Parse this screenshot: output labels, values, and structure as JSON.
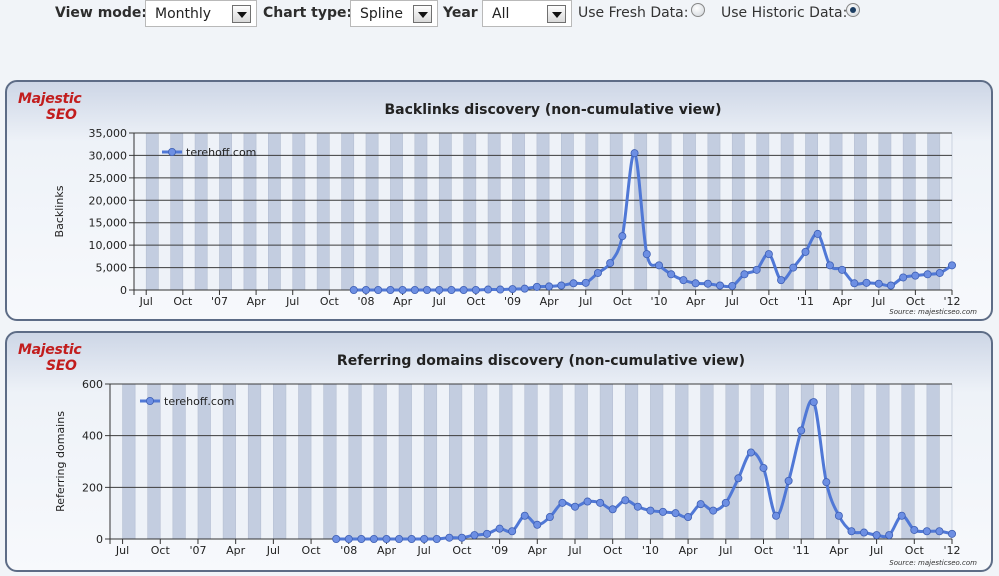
{
  "toolbar": {
    "view_mode_label": "View mode:",
    "view_mode_value": "Monthly",
    "chart_type_label": "Chart type:",
    "chart_type_value": "Spline",
    "year_label": "Year",
    "year_value": "All",
    "fresh_label": "Use Fresh Data:",
    "historic_label": "Use Historic Data:",
    "fresh_selected": false,
    "historic_selected": true
  },
  "logo": {
    "text": "Majestic SEO"
  },
  "source_text": "Source: majesticseo.com",
  "colors": {
    "series": "#5078d6",
    "marker": "#6d8fe3",
    "grid": "#3c3c3c",
    "band_dark": "#c3cde0",
    "band_light": "#eef2f8"
  },
  "x_tick_labels": [
    "Jul",
    "Oct",
    "'07",
    "Apr",
    "Jul",
    "Oct",
    "'08",
    "Apr",
    "Jul",
    "Oct",
    "'09",
    "Apr",
    "Jul",
    "Oct",
    "'10",
    "Apr",
    "Jul",
    "Oct",
    "'11",
    "Apr",
    "Jul",
    "Oct",
    "'12"
  ],
  "chart_data": [
    {
      "type": "line",
      "title": "Backlinks discovery (non-cumulative view)",
      "ylabel": "Backlinks",
      "ylim": [
        0,
        35000
      ],
      "y_ticks": [
        "0",
        "5,000",
        "10,000",
        "15,000",
        "20,000",
        "25,000",
        "30,000",
        "35,000"
      ],
      "y_tick_values": [
        0,
        5000,
        10000,
        15000,
        20000,
        25000,
        30000,
        35000
      ],
      "x_range": [
        "2006-06",
        "2012-01"
      ],
      "legend": "top-left",
      "series": [
        {
          "name": "terehoff.com",
          "x": [
            "2007-12",
            "2008-01",
            "2008-02",
            "2008-03",
            "2008-04",
            "2008-05",
            "2008-06",
            "2008-07",
            "2008-08",
            "2008-09",
            "2008-10",
            "2008-11",
            "2008-12",
            "2009-01",
            "2009-02",
            "2009-03",
            "2009-04",
            "2009-05",
            "2009-06",
            "2009-07",
            "2009-08",
            "2009-09",
            "2009-10",
            "2009-11",
            "2009-12",
            "2010-01",
            "2010-02",
            "2010-03",
            "2010-04",
            "2010-05",
            "2010-06",
            "2010-07",
            "2010-08",
            "2010-09",
            "2010-10",
            "2010-11",
            "2010-12",
            "2011-01",
            "2011-02",
            "2011-03",
            "2011-04",
            "2011-05",
            "2011-06",
            "2011-07",
            "2011-08",
            "2011-09",
            "2011-10",
            "2011-11",
            "2011-12",
            "2012-01"
          ],
          "values": [
            0,
            0,
            0,
            0,
            0,
            0,
            0,
            0,
            0,
            0,
            0,
            100,
            100,
            200,
            300,
            700,
            800,
            1000,
            1500,
            1600,
            3800,
            6000,
            12000,
            30500,
            8000,
            5500,
            3500,
            2200,
            1500,
            1400,
            1000,
            900,
            3500,
            4500,
            8000,
            2200,
            5000,
            8500,
            12500,
            5500,
            4500,
            1500,
            1600,
            1400,
            1000,
            2800,
            3200,
            3500,
            3800,
            5500
          ]
        }
      ]
    },
    {
      "type": "line",
      "title": "Referring domains discovery (non-cumulative view)",
      "ylabel": "Referring domains",
      "ylim": [
        0,
        600
      ],
      "y_ticks": [
        "0",
        "200",
        "400",
        "600"
      ],
      "y_tick_values": [
        0,
        200,
        400,
        600
      ],
      "x_range": [
        "2006-06",
        "2012-01"
      ],
      "legend": "top-left",
      "series": [
        {
          "name": "terehoff.com",
          "x": [
            "2007-12",
            "2008-01",
            "2008-02",
            "2008-03",
            "2008-04",
            "2008-05",
            "2008-06",
            "2008-07",
            "2008-08",
            "2008-09",
            "2008-10",
            "2008-11",
            "2008-12",
            "2009-01",
            "2009-02",
            "2009-03",
            "2009-04",
            "2009-05",
            "2009-06",
            "2009-07",
            "2009-08",
            "2009-09",
            "2009-10",
            "2009-11",
            "2009-12",
            "2010-01",
            "2010-02",
            "2010-03",
            "2010-04",
            "2010-05",
            "2010-06",
            "2010-07",
            "2010-08",
            "2010-09",
            "2010-10",
            "2010-11",
            "2010-12",
            "2011-01",
            "2011-02",
            "2011-03",
            "2011-04",
            "2011-05",
            "2011-06",
            "2011-07",
            "2011-08",
            "2011-09",
            "2011-10",
            "2011-11",
            "2011-12",
            "2012-01"
          ],
          "values": [
            0,
            0,
            0,
            0,
            0,
            0,
            0,
            0,
            0,
            5,
            5,
            15,
            20,
            40,
            30,
            90,
            55,
            85,
            140,
            125,
            145,
            140,
            115,
            150,
            125,
            110,
            105,
            100,
            85,
            135,
            110,
            140,
            235,
            335,
            275,
            90,
            225,
            420,
            530,
            220,
            90,
            30,
            25,
            15,
            15,
            90,
            35,
            30,
            30,
            20
          ]
        }
      ]
    }
  ]
}
